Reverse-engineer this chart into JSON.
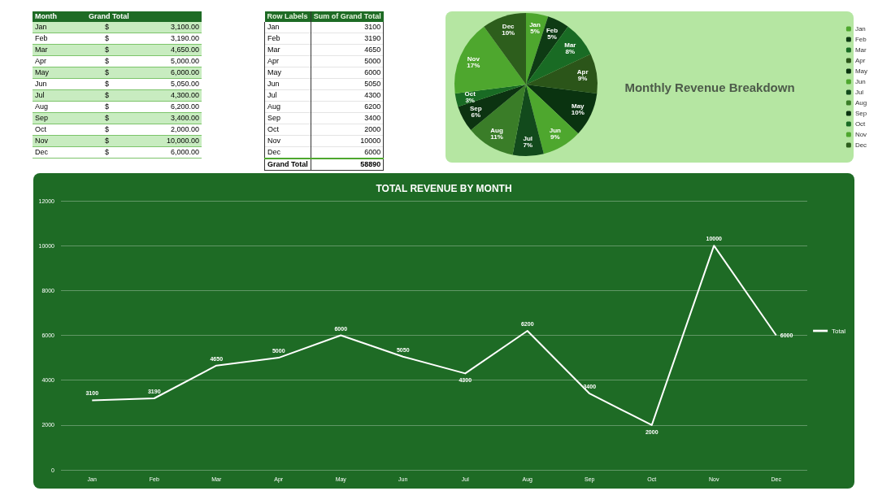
{
  "chart_data": [
    {
      "type": "other",
      "xlabel": "Month",
      "ylabel": "Grand Total",
      "categories": [
        "Jan",
        "Feb",
        "Mar",
        "Apr",
        "May",
        "Jun",
        "Jul",
        "Aug",
        "Sep",
        "Oct",
        "Nov",
        "Dec"
      ],
      "value_labels": [
        "$ 3,100.00",
        "$ 3,190.00",
        "$ 4,650.00",
        "$ 5,000.00",
        "$ 6,000.00",
        "$ 5,050.00",
        "$ 4,300.00",
        "$ 6,200.00",
        "$ 3,400.00",
        "$ 2,000.00",
        "$ 10,000.00",
        "$ 6,000.00"
      ]
    },
    {
      "type": "other",
      "xlabel": "Row Labels",
      "ylabel": "Sum of Grand Total",
      "categories": [
        "Jan",
        "Feb",
        "Mar",
        "Apr",
        "May",
        "Jun",
        "Jul",
        "Aug",
        "Sep",
        "Oct",
        "Nov",
        "Dec"
      ],
      "values": [
        3100,
        3190,
        4650,
        5000,
        6000,
        5050,
        4300,
        6200,
        3400,
        2000,
        10000,
        6000
      ],
      "data_labels": true,
      "annotations": [
        "Grand Total"
      ],
      "totals": [
        "58890"
      ]
    },
    {
      "type": "pie",
      "title": "Monthly Revenue Breakdown",
      "categories": [
        "Jan",
        "Feb",
        "Mar",
        "Apr",
        "May",
        "Jun",
        "Jul",
        "Aug",
        "Sep",
        "Oct",
        "Nov",
        "Dec"
      ],
      "values": [
        5,
        5,
        8,
        9,
        10,
        9,
        7,
        11,
        6,
        3,
        17,
        10
      ],
      "colors": [
        "#4ea72e",
        "#0e3b14",
        "#196b24",
        "#2b5519",
        "#0a3310",
        "#4ea72e",
        "#124a1c",
        "#3a7d28",
        "#0c3311",
        "#196b24",
        "#4ea72e",
        "#2d5e1c"
      ],
      "value_labels": [
        "5%",
        "5%",
        "8%",
        "9%",
        "10%",
        "9%",
        "7%",
        "11%",
        "6%",
        "3%",
        "17%",
        "10%"
      ],
      "legend": "right"
    },
    {
      "type": "line",
      "title": "TOTAL REVENUE BY MONTH",
      "categories": [
        "Jan",
        "Feb",
        "Mar",
        "Apr",
        "May",
        "Jun",
        "Jul",
        "Aug",
        "Sep",
        "Oct",
        "Nov",
        "Dec"
      ],
      "series": [
        {
          "name": "Total",
          "color": "#ffffff",
          "values": [
            3100,
            3190,
            4650,
            5000,
            6000,
            5050,
            4300,
            6200,
            3400,
            2000,
            10000,
            6000
          ]
        }
      ],
      "ylim": [
        0,
        12000
      ],
      "yticks": [
        0,
        2000,
        4000,
        6000,
        8000,
        10000,
        12000
      ],
      "grid": "y",
      "legend": "right",
      "marker": "none",
      "data_labels": true
    }
  ]
}
